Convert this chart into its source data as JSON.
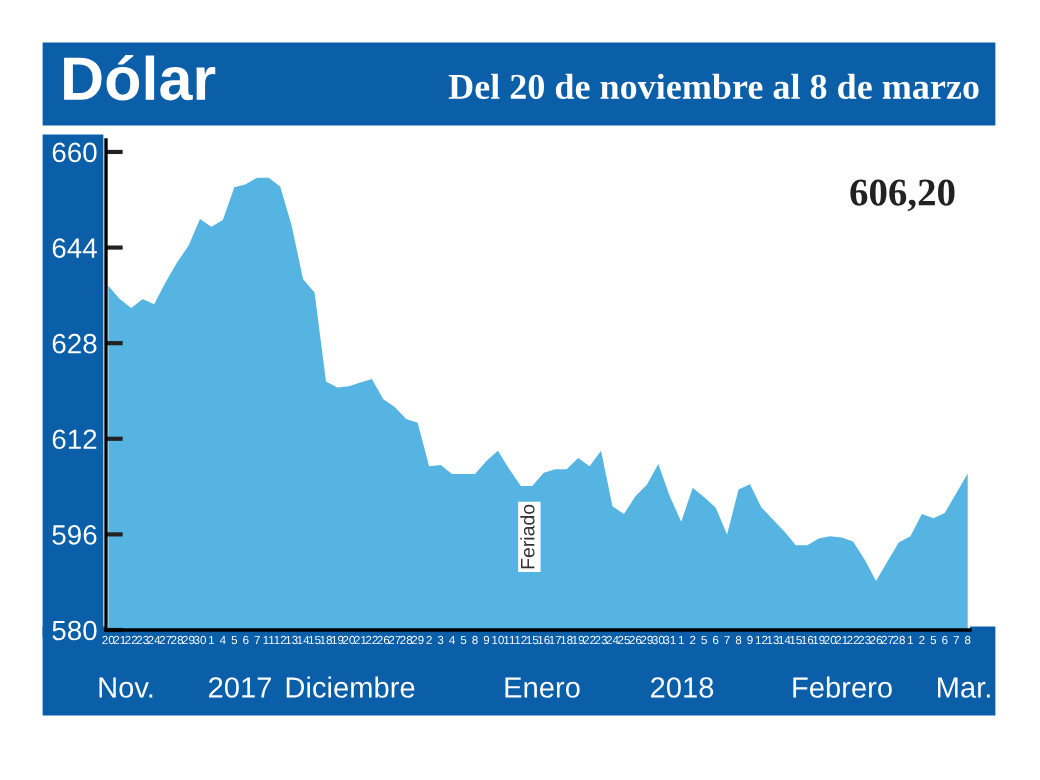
{
  "chart_data": {
    "type": "area",
    "title": "Dólar",
    "subtitle": "Del 20 de noviembre al 8 de marzo",
    "categories": [
      "20",
      "21",
      "22",
      "23",
      "24",
      "27",
      "28",
      "29",
      "30",
      "1",
      "4",
      "5",
      "6",
      "7",
      "11",
      "12",
      "13",
      "14",
      "15",
      "18",
      "19",
      "20",
      "21",
      "22",
      "26",
      "27",
      "28",
      "29",
      "2",
      "3",
      "4",
      "5",
      "8",
      "9",
      "10",
      "11",
      "12",
      "15",
      "16",
      "17",
      "18",
      "19",
      "22",
      "23",
      "24",
      "25",
      "26",
      "29",
      "30",
      "31",
      "1",
      "2",
      "5",
      "6",
      "7",
      "8",
      "9",
      "12",
      "13",
      "14",
      "15",
      "16",
      "19",
      "20",
      "21",
      "22",
      "23",
      "26",
      "27",
      "28",
      "1",
      "2",
      "5",
      "6",
      "7",
      "8"
    ],
    "series": [
      {
        "color": "#56b4e3",
        "values": [
          637.6,
          635.4,
          633.9,
          635.4,
          634.5,
          638.2,
          641.5,
          644.3,
          648.8,
          647.5,
          648.6,
          654.1,
          654.6,
          655.7,
          655.7,
          654.2,
          647.7,
          638.7,
          636.5,
          621.6,
          620.6,
          620.8,
          621.4,
          622.0,
          618.6,
          617.3,
          615.3,
          614.7,
          607.4,
          607.6,
          606.1,
          606.1,
          606.1,
          608.3,
          610.0,
          606.9,
          604.1,
          604.1,
          606.3,
          606.9,
          606.9,
          608.8,
          607.4,
          610.0,
          600.7,
          599.4,
          602.4,
          604.3,
          607.8,
          602.4,
          598.1,
          603.8,
          602.2,
          600.5,
          596.0,
          603.5,
          604.4,
          600.5,
          598.5,
          596.5,
          594.2,
          594.2,
          595.3,
          595.7,
          595.5,
          594.8,
          591.8,
          588.2,
          591.5,
          594.7,
          595.7,
          599.4,
          598.7,
          599.6,
          602.9,
          606.2
        ]
      }
    ],
    "ylim": [
      580,
      662
    ],
    "yticks": [
      580,
      596,
      612,
      628,
      644,
      660
    ],
    "grid": false,
    "legend": false,
    "annotations": [
      "606,20",
      "Feriado",
      "Nov.",
      "2017",
      "Diciembre",
      "Enero",
      "2018",
      "Febrero",
      "Mar."
    ]
  }
}
